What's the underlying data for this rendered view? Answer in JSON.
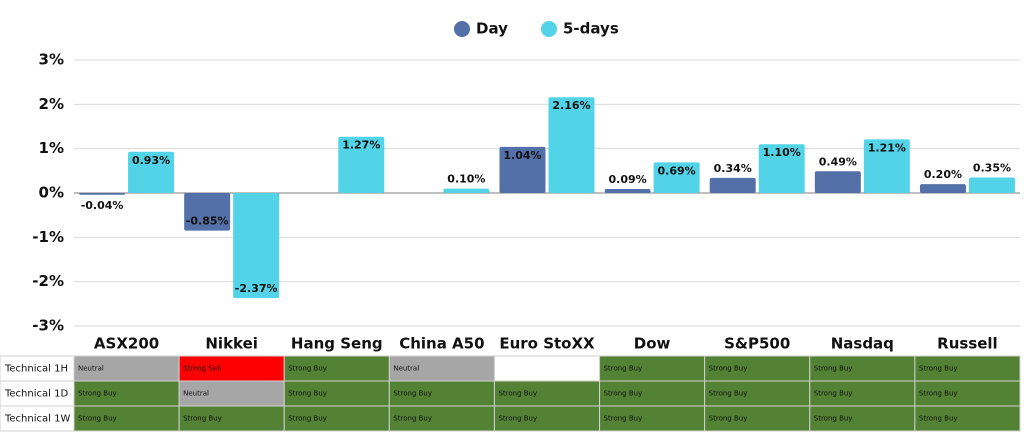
{
  "chart_data": {
    "type": "bar",
    "categories": [
      "ASX200",
      "Nikkei",
      "Hang Seng",
      "China A50",
      "Euro StoXX",
      "Dow",
      "S&P500",
      "Nasdaq",
      "Russell"
    ],
    "series": [
      {
        "name": "Day",
        "color": "#5470a8",
        "values": [
          -0.04,
          -0.85,
          null,
          null,
          1.04,
          0.09,
          0.34,
          0.49,
          0.2
        ],
        "value_labels": [
          "-0.04%",
          "-0.85%",
          null,
          null,
          "1.04%",
          "0.09%",
          "0.34%",
          "0.49%",
          "0.20%"
        ]
      },
      {
        "name": "5-days",
        "color": "#52d3e8",
        "values": [
          0.93,
          -2.37,
          1.27,
          0.1,
          2.16,
          0.69,
          1.1,
          1.21,
          0.35
        ],
        "value_labels": [
          "0.93%",
          "-2.37%",
          "1.27%",
          "0.10%",
          "2.16%",
          "0.69%",
          "1.10%",
          "1.21%",
          "0.35%"
        ]
      }
    ],
    "ylim": [
      -3,
      3
    ],
    "yticks": [
      {
        "value": -3,
        "label": "-3%"
      },
      {
        "value": -2,
        "label": "-2%"
      },
      {
        "value": -1,
        "label": "-1%"
      },
      {
        "value": 0,
        "label": "0%"
      },
      {
        "value": 1,
        "label": "1%"
      },
      {
        "value": 2,
        "label": "2%"
      },
      {
        "value": 3,
        "label": "3%"
      }
    ],
    "grid": true,
    "legend": "top"
  },
  "table": {
    "row_labels": [
      "Technical 1H",
      "Technical 1D",
      "Technical 1W"
    ],
    "rows": [
      [
        {
          "text": "Neutral",
          "color": "#a6a6a6"
        },
        {
          "text": "Strong Sell",
          "color": "#ff0000"
        },
        {
          "text": "Strong Buy",
          "color": "#548235"
        },
        {
          "text": "Neutral",
          "color": "#a6a6a6"
        },
        null,
        {
          "text": "Strong Buy",
          "color": "#548235"
        },
        {
          "text": "Strong Buy",
          "color": "#548235"
        },
        {
          "text": "Strong Buy",
          "color": "#548235"
        },
        {
          "text": "Strong Buy",
          "color": "#548235"
        }
      ],
      [
        {
          "text": "Strong Buy",
          "color": "#548235"
        },
        {
          "text": "Neutral",
          "color": "#a6a6a6"
        },
        {
          "text": "Strong Buy",
          "color": "#548235"
        },
        {
          "text": "Strong Buy",
          "color": "#548235"
        },
        {
          "text": "Strong Buy",
          "color": "#548235"
        },
        {
          "text": "Strong Buy",
          "color": "#548235"
        },
        {
          "text": "Strong Buy",
          "color": "#548235"
        },
        {
          "text": "Strong Buy",
          "color": "#548235"
        },
        {
          "text": "Strong Buy",
          "color": "#548235"
        }
      ],
      [
        {
          "text": "Strong Buy",
          "color": "#548235"
        },
        {
          "text": "Strong Buy",
          "color": "#548235"
        },
        {
          "text": "Strong Buy",
          "color": "#548235"
        },
        {
          "text": "Strong Buy",
          "color": "#548235"
        },
        {
          "text": "Strong Buy",
          "color": "#548235"
        },
        {
          "text": "Strong Buy",
          "color": "#548235"
        },
        {
          "text": "Strong Buy",
          "color": "#548235"
        },
        {
          "text": "Strong Buy",
          "color": "#548235"
        },
        {
          "text": "Strong Buy",
          "color": "#548235"
        }
      ]
    ]
  }
}
